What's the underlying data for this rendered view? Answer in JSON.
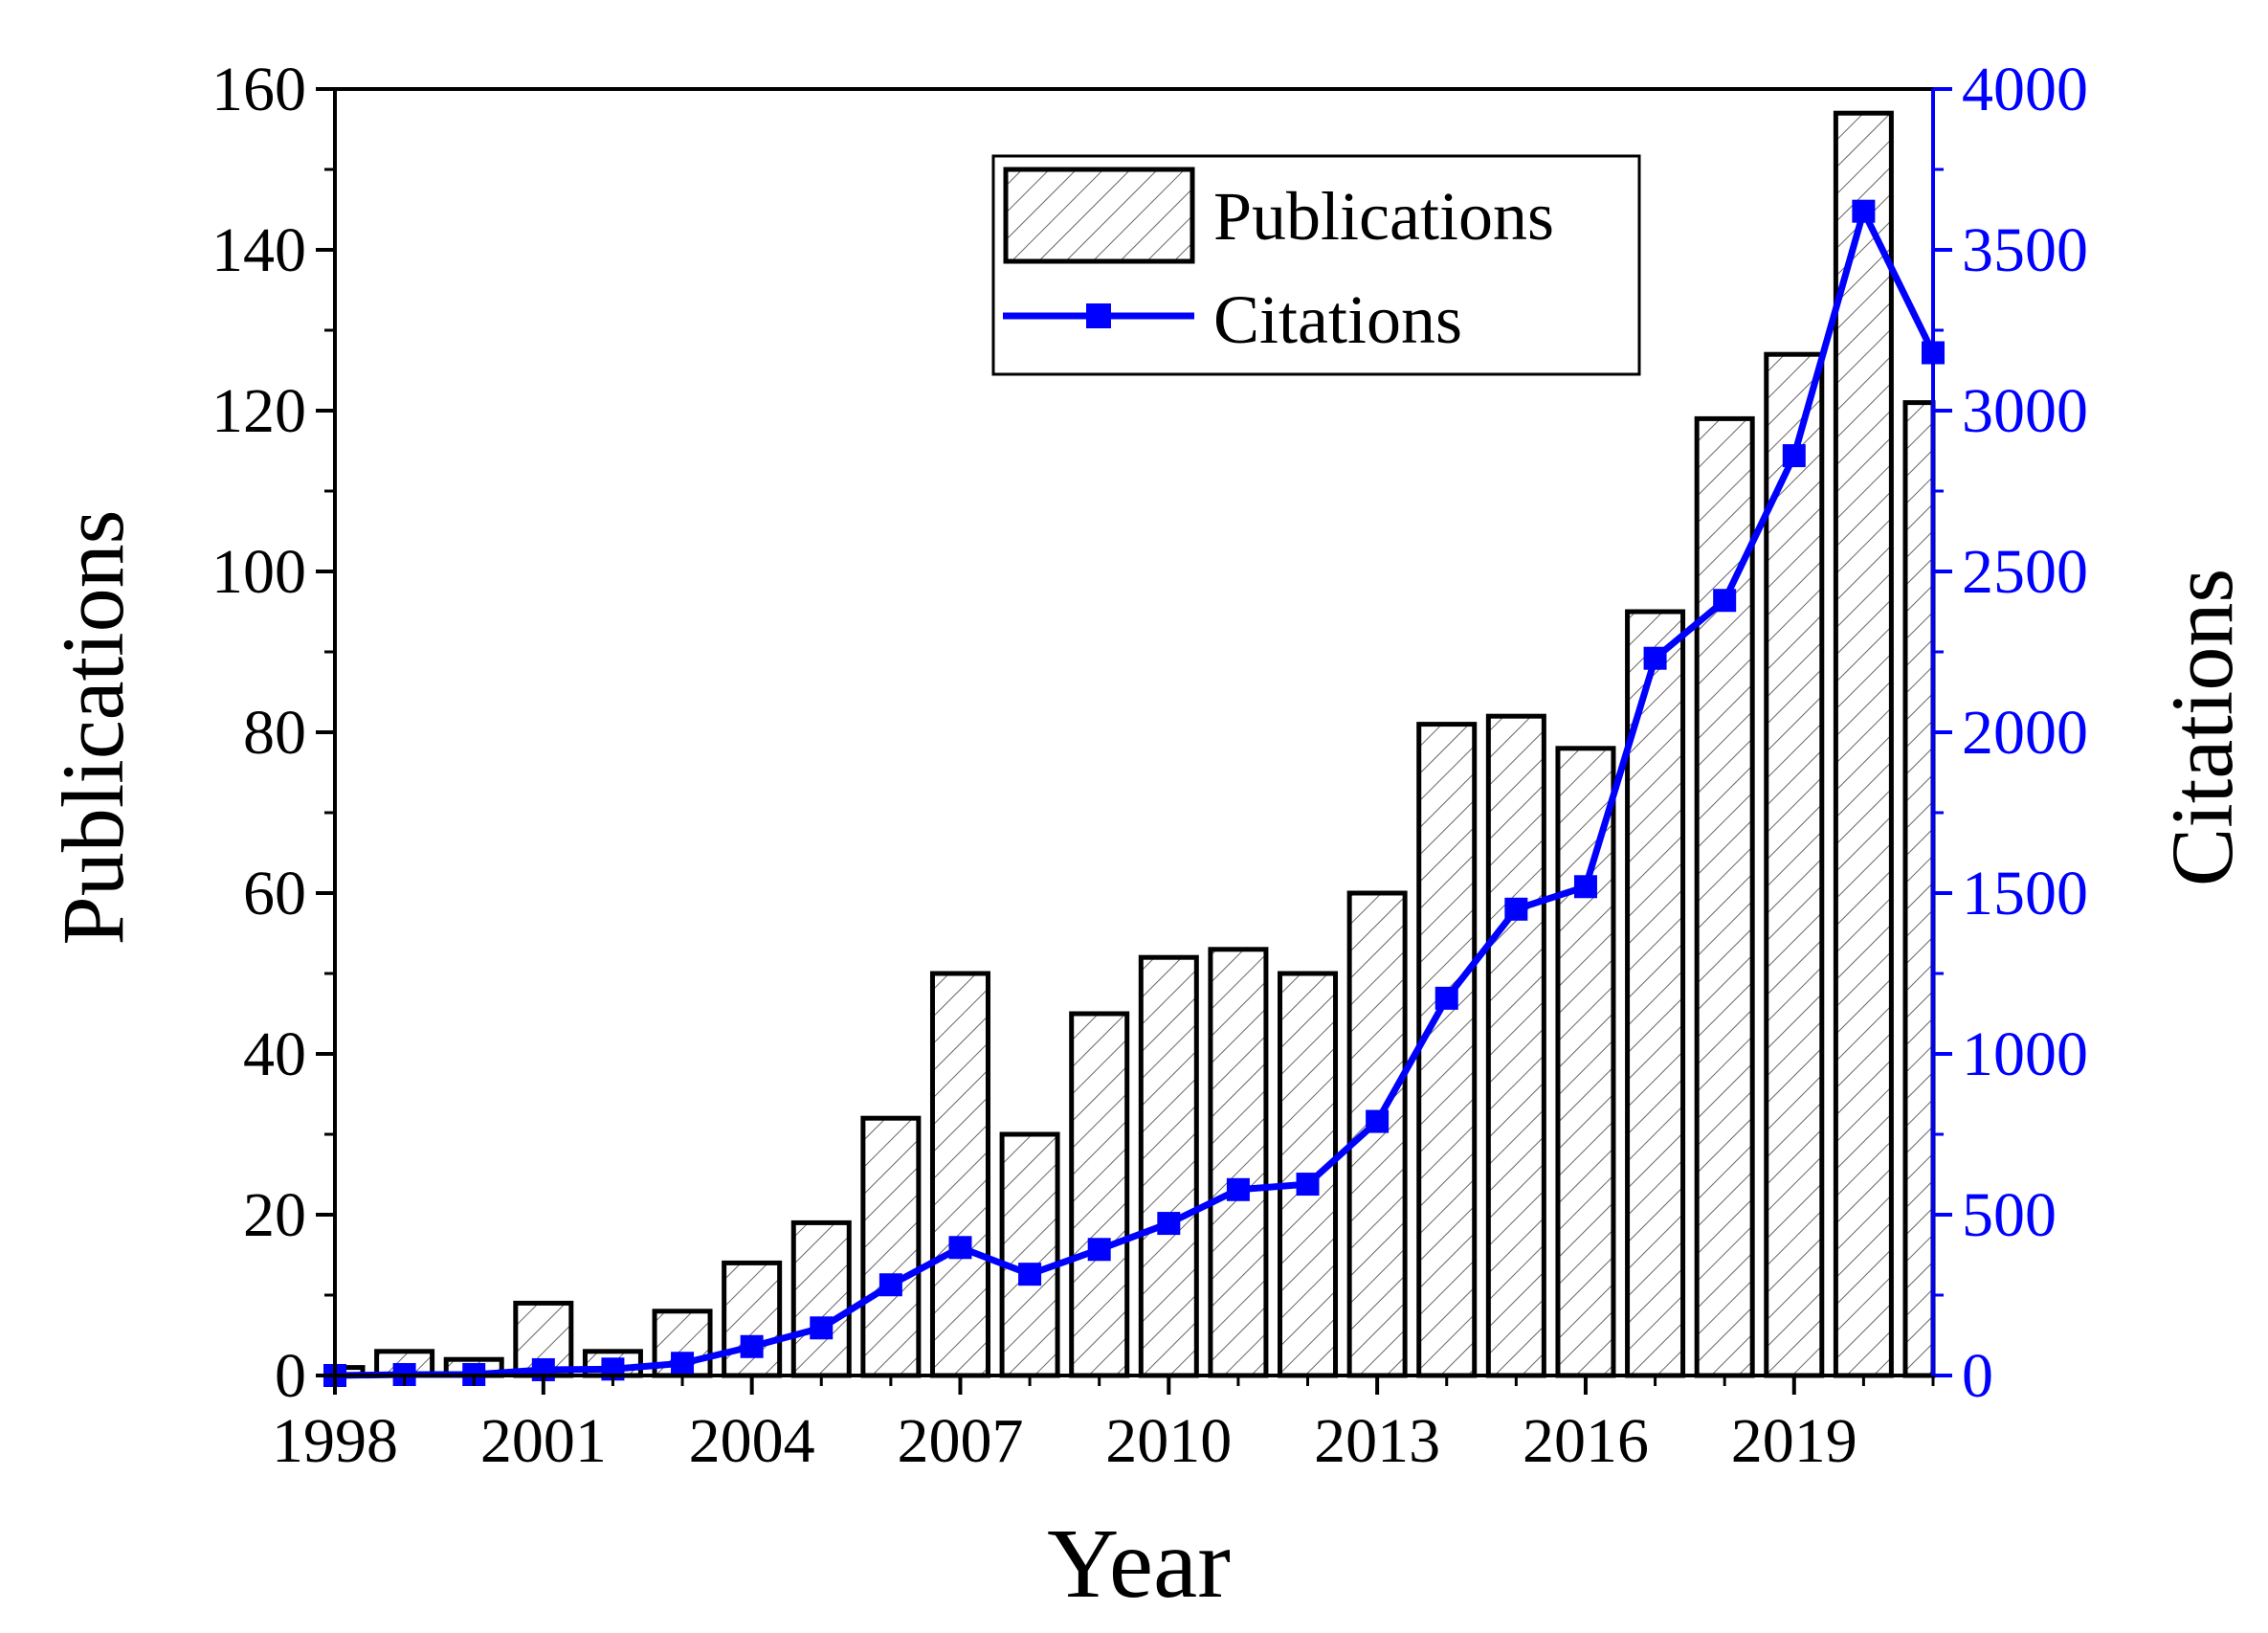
{
  "chart_data": {
    "type": "bar",
    "title": "",
    "xlabel": "Year",
    "ylabel": "Publications",
    "y2label": "Citations",
    "categories": [
      "1998",
      "1999",
      "2000",
      "2001",
      "2002",
      "2003",
      "2004",
      "2005",
      "2006",
      "2007",
      "2008",
      "2009",
      "2010",
      "2011",
      "2012",
      "2013",
      "2014",
      "2015",
      "2016",
      "2017",
      "2018",
      "2019",
      "2020",
      "2021"
    ],
    "series": [
      {
        "name": "Publications",
        "type": "bar",
        "axis": "left",
        "values": [
          1,
          3,
          2,
          9,
          3,
          8,
          14,
          19,
          32,
          50,
          30,
          45,
          52,
          53,
          50,
          60,
          81,
          82,
          78,
          95,
          119,
          127,
          157,
          121
        ]
      },
      {
        "name": "Citations",
        "type": "line",
        "axis": "right",
        "values": [
          0,
          3,
          3,
          18,
          20,
          38,
          90,
          148,
          282,
          398,
          315,
          392,
          473,
          578,
          595,
          790,
          1173,
          1450,
          1520,
          2230,
          2410,
          2860,
          3620,
          3180
        ]
      }
    ],
    "ylim": [
      0,
      160
    ],
    "y2lim": [
      0,
      4000
    ],
    "yticks": [
      "0",
      "20",
      "40",
      "60",
      "80",
      "100",
      "120",
      "140",
      "160"
    ],
    "y2ticks": [
      "0",
      "500",
      "1000",
      "1500",
      "2000",
      "2500",
      "3000",
      "3500",
      "4000"
    ],
    "xticks": [
      "1998",
      "2001",
      "2004",
      "2007",
      "2010",
      "2013",
      "2016",
      "2019"
    ],
    "legend": {
      "position": "top-center",
      "entries": [
        "Publications",
        "Citations"
      ]
    },
    "colors": {
      "bar_fill": "#ffffff",
      "bar_stroke": "#000000",
      "hatch": "#555555",
      "citations": "#0000ff",
      "axis_left": "#000000",
      "axis_right": "#0000ff"
    },
    "grid": false
  }
}
